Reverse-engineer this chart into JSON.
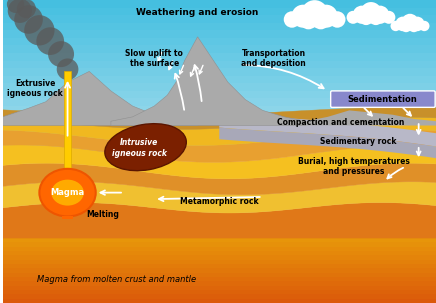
{
  "fig_width": 4.36,
  "fig_height": 3.03,
  "dpi": 100,
  "labels": {
    "weathering": "Weathering and erosion",
    "slow_uplift": "Slow uplift to\nthe surface",
    "transportation": "Transportation\nand deposition",
    "sedimentation": "Sedimentation",
    "compaction": "Compaction and cementation",
    "sedimentary": "Sedimentary rock",
    "burial": "Burial, high temperatures\nand pressures",
    "metamorphic": "Metamorphic rock",
    "melting": "Melting",
    "magma": "Magma",
    "extrusive": "Extrusive\nigneous rock",
    "intrusive": "Intrusive\nigneous rock",
    "magma_source": "Magma from molten crust and mantle"
  }
}
